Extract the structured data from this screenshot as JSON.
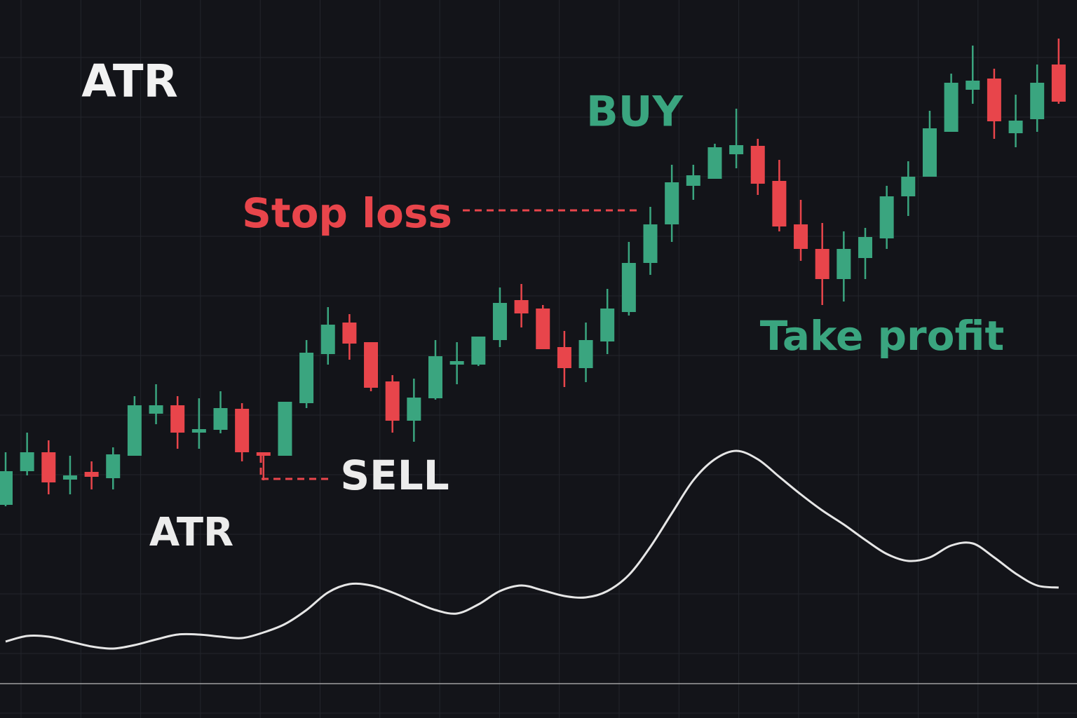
{
  "chart_data": {
    "type": "candlestick",
    "annotations": [
      {
        "text": "ATR",
        "color": "#f2f2f2"
      },
      {
        "text": "BUY",
        "color": "#3aa57f"
      },
      {
        "text": "Stop loss",
        "color": "#e8454b"
      },
      {
        "text": "SELL",
        "color": "#ececec"
      },
      {
        "text": "Take profit",
        "color": "#3aa57f"
      },
      {
        "text": "ATR",
        "color": "#ececec"
      }
    ],
    "categories": [
      null,
      null,
      null,
      null,
      null,
      null,
      null,
      null,
      null,
      null,
      null,
      null,
      null,
      null,
      null,
      null,
      null,
      null,
      null,
      null,
      null,
      null,
      null,
      null,
      null,
      null,
      null,
      null,
      null,
      null,
      null,
      null,
      null,
      null,
      null,
      null,
      null,
      null,
      null,
      null,
      null,
      null,
      null,
      null,
      null,
      null,
      null,
      null,
      null,
      null
    ],
    "open": [
      30.4,
      35.2,
      37.9,
      34.0,
      35.1,
      34.2,
      37.4,
      43.4,
      44.6,
      40.7,
      41.1,
      44.1,
      37.9,
      37.4,
      44.9,
      51.9,
      56.4,
      53.6,
      48.0,
      42.4,
      45.6,
      50.4,
      50.4,
      53.9,
      59.6,
      58.4,
      52.9,
      49.9,
      53.7,
      57.9,
      64.9,
      70.4,
      75.9,
      76.9,
      80.4,
      81.6,
      76.6,
      70.4,
      66.9,
      62.6,
      65.6,
      68.4,
      74.4,
      77.2,
      83.6,
      89.6,
      91.2,
      83.4,
      85.4,
      93.2
    ],
    "high": [
      37.9,
      40.7,
      39.6,
      37.4,
      36.6,
      38.6,
      45.9,
      47.6,
      45.9,
      45.6,
      46.6,
      44.9,
      37.9,
      45.1,
      53.9,
      58.6,
      57.6,
      53.6,
      48.9,
      48.4,
      53.9,
      53.6,
      54.4,
      61.4,
      61.9,
      58.9,
      55.2,
      56.4,
      61.2,
      67.9,
      72.9,
      78.9,
      78.9,
      81.9,
      86.9,
      82.6,
      79.6,
      73.9,
      70.6,
      69.4,
      69.9,
      75.9,
      79.4,
      86.6,
      91.9,
      95.9,
      92.6,
      88.9,
      93.2,
      96.9
    ],
    "low": [
      30.2,
      34.6,
      31.9,
      31.9,
      32.6,
      32.6,
      37.4,
      41.9,
      38.4,
      38.4,
      40.6,
      36.6,
      33.9,
      37.4,
      44.2,
      50.4,
      51.1,
      46.6,
      40.7,
      39.4,
      45.4,
      47.6,
      50.2,
      52.9,
      55.7,
      52.6,
      47.2,
      47.9,
      51.9,
      57.4,
      63.2,
      67.9,
      73.9,
      76.9,
      78.4,
      74.6,
      69.4,
      65.2,
      58.9,
      59.4,
      62.6,
      66.9,
      71.6,
      77.2,
      83.6,
      87.6,
      82.6,
      81.4,
      83.6,
      87.6
    ],
    "close": [
      35.2,
      37.9,
      33.6,
      34.6,
      34.4,
      37.6,
      44.6,
      44.6,
      40.7,
      41.2,
      44.2,
      37.9,
      37.4,
      45.1,
      52.1,
      56.1,
      53.4,
      47.1,
      42.4,
      45.7,
      51.6,
      50.9,
      54.4,
      59.2,
      57.7,
      52.6,
      49.9,
      53.9,
      58.4,
      64.9,
      70.4,
      76.4,
      77.4,
      81.4,
      81.7,
      76.2,
      70.1,
      66.9,
      62.6,
      66.9,
      68.6,
      74.4,
      77.2,
      84.1,
      90.6,
      90.9,
      85.1,
      85.2,
      90.6,
      87.9
    ],
    "up_color": "#3aa57f",
    "down_color": "#e8454b",
    "atr": {
      "color": "#e6e6e6",
      "values": [
        10.9,
        11.7,
        11.6,
        10.9,
        10.2,
        9.9,
        10.4,
        11.2,
        11.9,
        11.9,
        11.6,
        11.4,
        12.2,
        13.4,
        15.4,
        17.9,
        19.1,
        18.9,
        17.9,
        16.6,
        15.4,
        14.9,
        16.2,
        18.1,
        18.9,
        18.2,
        17.4,
        17.2,
        18.1,
        20.4,
        24.4,
        29.2,
        33.9,
        36.9,
        38.1,
        36.9,
        34.4,
        31.9,
        29.6,
        27.6,
        25.4,
        23.4,
        22.4,
        22.9,
        24.6,
        24.9,
        22.9,
        20.6,
        18.9,
        18.6
      ]
    },
    "ylim": [
      0,
      102.4
    ],
    "grid": true
  }
}
